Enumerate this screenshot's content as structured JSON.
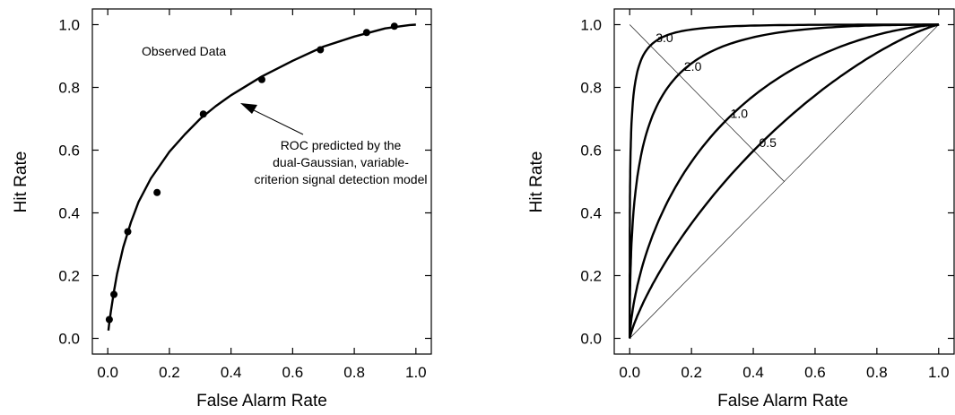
{
  "chart_data": [
    {
      "type": "scatter",
      "xlabel": "False Alarm Rate",
      "ylabel": "Hit Rate",
      "xlim": [
        -0.05,
        1.05
      ],
      "ylim": [
        -0.05,
        1.05
      ],
      "xticks": [
        "0.0",
        "0.2",
        "0.4",
        "0.6",
        "0.8",
        "1.0"
      ],
      "yticks": [
        "0.0",
        "0.2",
        "0.4",
        "0.6",
        "0.8",
        "1.0"
      ],
      "tick_values": [
        0,
        0.2,
        0.4,
        0.6,
        0.8,
        1.0
      ],
      "grid": false,
      "series": [
        {
          "kind": "points",
          "x": [
            0.005,
            0.02,
            0.065,
            0.16,
            0.31,
            0.5,
            0.69,
            0.84,
            0.93
          ],
          "y": [
            0.06,
            0.14,
            0.34,
            0.465,
            0.715,
            0.825,
            0.92,
            0.975,
            0.995
          ]
        },
        {
          "kind": "curve",
          "x": [
            0.002,
            0.005,
            0.01,
            0.02,
            0.03,
            0.05,
            0.075,
            0.1,
            0.14,
            0.2,
            0.25,
            0.3,
            0.35,
            0.4,
            0.45,
            0.5,
            0.6,
            0.7,
            0.8,
            0.9,
            0.95,
            0.98,
            1.0
          ],
          "y": [
            0.025,
            0.05,
            0.085,
            0.15,
            0.205,
            0.29,
            0.37,
            0.435,
            0.51,
            0.595,
            0.65,
            0.7,
            0.74,
            0.775,
            0.805,
            0.835,
            0.885,
            0.93,
            0.962,
            0.988,
            0.995,
            0.999,
            1.0
          ]
        }
      ],
      "annotations": {
        "observed": "Observed Data",
        "roc_lines": [
          "ROC predicted by the",
          "dual-Gaussian, variable-",
          "criterion signal detection model"
        ]
      }
    },
    {
      "type": "line",
      "xlabel": "False Alarm Rate",
      "ylabel": "Hit Rate",
      "xlim": [
        -0.05,
        1.05
      ],
      "ylim": [
        -0.05,
        1.05
      ],
      "xticks": [
        "0.0",
        "0.2",
        "0.4",
        "0.6",
        "0.8",
        "1.0"
      ],
      "yticks": [
        "0.0",
        "0.2",
        "0.4",
        "0.6",
        "0.8",
        "1.0"
      ],
      "tick_values": [
        0,
        0.2,
        0.4,
        0.6,
        0.8,
        1.0
      ],
      "grid": false,
      "d_prime": [
        3.0,
        2.0,
        1.0,
        0.5
      ],
      "d_prime_labels": [
        "3.0",
        "2.0",
        "1.0",
        "0.5"
      ],
      "chance_line": {
        "x": [
          0,
          1
        ],
        "y": [
          0,
          1
        ]
      },
      "minor_diagonal": {
        "x": [
          0,
          0.5
        ],
        "y": [
          1,
          0.5
        ]
      }
    }
  ]
}
